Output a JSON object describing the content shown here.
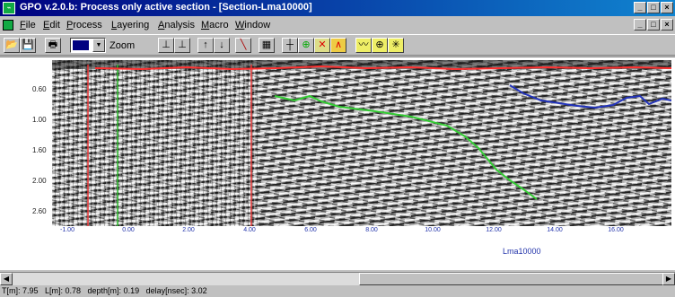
{
  "window": {
    "title": "GPO v.2.0.b: Process only active section - [Section-Lma10000]",
    "app_icon": "gpo-app-icon",
    "controls": [
      "minimize-icon",
      "maximize-icon",
      "close-icon"
    ]
  },
  "menu": {
    "items": [
      "File",
      "Edit",
      "Process",
      "Layering",
      "Analysis",
      "Macro",
      "Window"
    ]
  },
  "toolbar": {
    "zoom_label": "Zoom"
  },
  "plot": {
    "depth_ticks": [
      "0.60",
      "1.00",
      "1.60",
      "2.00",
      "2.60"
    ],
    "x_ticks": [
      "-1.00",
      "0.00",
      "2.00",
      "4.00",
      "6.00",
      "8.00",
      "10.00",
      "12.00",
      "14.00",
      "16.00"
    ],
    "section_label": "Lma10000",
    "colors": {
      "surface_line": "#ff3030",
      "green_layer": "#33cc33",
      "blue_layer": "#2233bb",
      "marker_red": "#e03030",
      "marker_green": "#30c030"
    }
  },
  "status": {
    "text": "T[m]: 7.95   L[m]: 0.78   depth[m]: 0.19   delay[nsec]: 3.02"
  }
}
